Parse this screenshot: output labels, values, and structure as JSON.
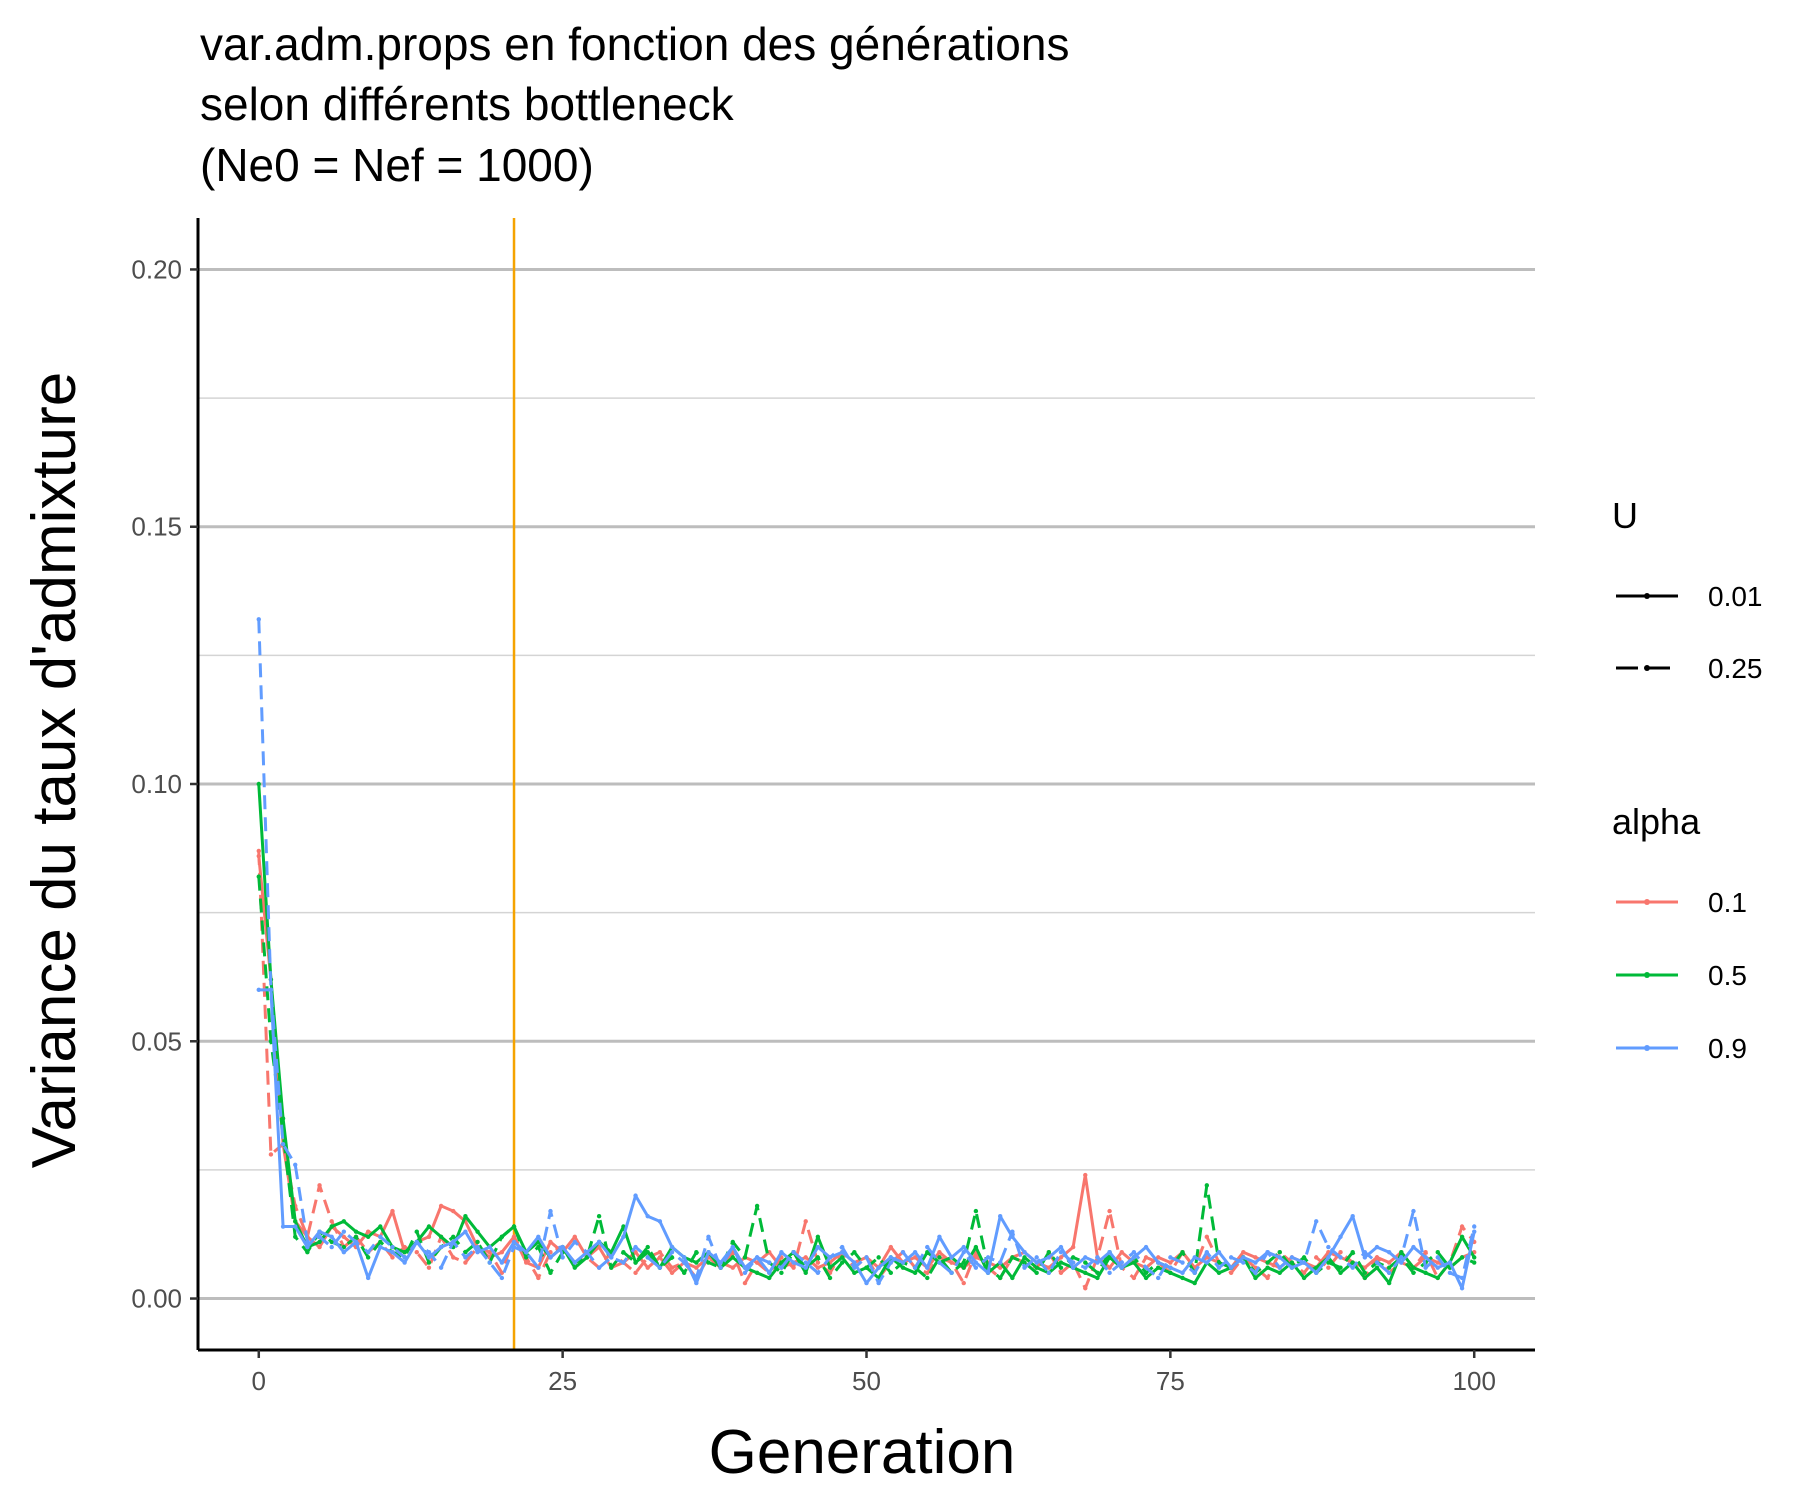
{
  "chart_data": {
    "type": "line",
    "title_lines": [
      "var.adm.props en fonction des générations",
      " selon différents bottleneck",
      " (Ne0 = Nef = 1000)"
    ],
    "xlabel": "Generation",
    "ylabel": "Variance du taux d'admixture",
    "xlim": [
      -5,
      105
    ],
    "ylim": [
      -0.01,
      0.21
    ],
    "x_ticks": [
      0,
      25,
      50,
      75,
      100
    ],
    "x_tick_labels": [
      "0",
      "25",
      "50",
      "75",
      "100"
    ],
    "y_ticks": [
      0,
      0.05,
      0.1,
      0.15,
      0.2
    ],
    "y_tick_labels": [
      "0.00",
      "0.05",
      "0.10",
      "0.15",
      "0.20"
    ],
    "y_minor_gridlines": [
      0.025,
      0.075,
      0.125,
      0.175
    ],
    "grid": "horizontal",
    "vline": {
      "x": 21,
      "color": "#f5a300"
    },
    "legend_position": "right",
    "legend": {
      "U": {
        "title": "U",
        "entries": [
          "0.01",
          "0.25"
        ]
      },
      "alpha": {
        "title": "alpha",
        "entries": [
          "0.1",
          "0.5",
          "0.9"
        ]
      }
    },
    "colors": {
      "0.1": "#f8766d",
      "0.5": "#00ba38",
      "0.9": "#619cff"
    },
    "linetypes": {
      "0.01": "solid",
      "0.25": "dashed"
    },
    "x_start": 0,
    "series": [
      {
        "alpha": "0.1",
        "U": "0.01",
        "values": [
          0.086,
          0.062,
          0.03,
          0.015,
          0.012,
          0.01,
          0.014,
          0.012,
          0.01,
          0.013,
          0.012,
          0.017,
          0.009,
          0.011,
          0.012,
          0.018,
          0.017,
          0.015,
          0.01,
          0.008,
          0.009,
          0.012,
          0.007,
          0.006,
          0.011,
          0.009,
          0.012,
          0.008,
          0.01,
          0.006,
          0.007,
          0.009,
          0.006,
          0.008,
          0.005,
          0.007,
          0.006,
          0.008,
          0.007,
          0.006,
          0.008,
          0.007,
          0.009,
          0.006,
          0.007,
          0.008,
          0.006,
          0.007,
          0.009,
          0.007,
          0.008,
          0.006,
          0.01,
          0.007,
          0.008,
          0.006,
          0.009,
          0.007,
          0.006,
          0.008,
          0.007,
          0.006,
          0.008,
          0.009,
          0.007,
          0.006,
          0.008,
          0.01,
          0.024,
          0.008,
          0.006,
          0.009,
          0.007,
          0.006,
          0.008,
          0.007,
          0.009,
          0.006,
          0.008,
          0.007,
          0.006,
          0.009,
          0.008,
          0.007,
          0.006,
          0.008,
          0.007,
          0.006,
          0.009,
          0.008,
          0.007,
          0.006,
          0.008,
          0.007,
          0.009,
          0.006,
          0.008,
          0.007,
          0.006,
          0.008,
          0.009
        ]
      },
      {
        "alpha": "0.1",
        "U": "0.25",
        "values": [
          0.087,
          0.028,
          0.03,
          0.018,
          0.012,
          0.022,
          0.015,
          0.01,
          0.012,
          0.009,
          0.011,
          0.008,
          0.01,
          0.009,
          0.006,
          0.012,
          0.008,
          0.007,
          0.01,
          0.009,
          0.005,
          0.012,
          0.008,
          0.004,
          0.009,
          0.01,
          0.007,
          0.008,
          0.006,
          0.009,
          0.007,
          0.005,
          0.008,
          0.009,
          0.006,
          0.007,
          0.004,
          0.008,
          0.006,
          0.009,
          0.003,
          0.007,
          0.005,
          0.008,
          0.006,
          0.015,
          0.007,
          0.005,
          0.009,
          0.006,
          0.008,
          0.004,
          0.007,
          0.009,
          0.006,
          0.005,
          0.008,
          0.007,
          0.003,
          0.009,
          0.006,
          0.004,
          0.008,
          0.007,
          0.006,
          0.009,
          0.005,
          0.007,
          0.002,
          0.008,
          0.017,
          0.006,
          0.004,
          0.008,
          0.007,
          0.005,
          0.009,
          0.006,
          0.012,
          0.007,
          0.005,
          0.008,
          0.006,
          0.004,
          0.009,
          0.007,
          0.005,
          0.008,
          0.006,
          0.009,
          0.007,
          0.004,
          0.008,
          0.005,
          0.007,
          0.006,
          0.009,
          0.004,
          0.007,
          0.014,
          0.011
        ]
      },
      {
        "alpha": "0.5",
        "U": "0.01",
        "values": [
          0.1,
          0.062,
          0.035,
          0.015,
          0.01,
          0.011,
          0.014,
          0.015,
          0.013,
          0.012,
          0.014,
          0.01,
          0.009,
          0.011,
          0.014,
          0.012,
          0.01,
          0.016,
          0.013,
          0.01,
          0.012,
          0.014,
          0.009,
          0.011,
          0.008,
          0.01,
          0.006,
          0.008,
          0.011,
          0.009,
          0.014,
          0.007,
          0.009,
          0.006,
          0.01,
          0.008,
          0.007,
          0.009,
          0.006,
          0.008,
          0.006,
          0.005,
          0.004,
          0.007,
          0.009,
          0.005,
          0.012,
          0.006,
          0.008,
          0.005,
          0.006,
          0.004,
          0.008,
          0.006,
          0.005,
          0.009,
          0.007,
          0.008,
          0.006,
          0.01,
          0.005,
          0.007,
          0.004,
          0.008,
          0.006,
          0.005,
          0.007,
          0.006,
          0.005,
          0.004,
          0.008,
          0.006,
          0.007,
          0.004,
          0.006,
          0.005,
          0.004,
          0.003,
          0.007,
          0.005,
          0.006,
          0.008,
          0.004,
          0.006,
          0.005,
          0.007,
          0.004,
          0.006,
          0.008,
          0.005,
          0.007,
          0.004,
          0.006,
          0.003,
          0.009,
          0.006,
          0.005,
          0.004,
          0.007,
          0.012,
          0.008
        ]
      },
      {
        "alpha": "0.5",
        "U": "0.25",
        "values": [
          0.082,
          0.05,
          0.032,
          0.012,
          0.009,
          0.013,
          0.011,
          0.01,
          0.012,
          0.008,
          0.011,
          0.009,
          0.008,
          0.013,
          0.007,
          0.01,
          0.012,
          0.009,
          0.011,
          0.007,
          0.012,
          0.014,
          0.008,
          0.01,
          0.005,
          0.009,
          0.007,
          0.008,
          0.016,
          0.006,
          0.009,
          0.007,
          0.01,
          0.006,
          0.008,
          0.005,
          0.009,
          0.007,
          0.006,
          0.011,
          0.008,
          0.018,
          0.007,
          0.005,
          0.009,
          0.006,
          0.008,
          0.004,
          0.007,
          0.009,
          0.006,
          0.008,
          0.005,
          0.007,
          0.006,
          0.004,
          0.008,
          0.005,
          0.007,
          0.017,
          0.006,
          0.004,
          0.008,
          0.007,
          0.005,
          0.009,
          0.006,
          0.008,
          0.007,
          0.005,
          0.009,
          0.006,
          0.008,
          0.005,
          0.007,
          0.006,
          0.009,
          0.005,
          0.022,
          0.007,
          0.006,
          0.008,
          0.005,
          0.007,
          0.009,
          0.006,
          0.008,
          0.005,
          0.007,
          0.006,
          0.009,
          0.005,
          0.007,
          0.006,
          0.008,
          0.005,
          0.007,
          0.009,
          0.006,
          0.008,
          0.007
        ]
      },
      {
        "alpha": "0.9",
        "U": "0.01",
        "values": [
          0.06,
          0.06,
          0.014,
          0.014,
          0.01,
          0.013,
          0.012,
          0.009,
          0.011,
          0.004,
          0.01,
          0.009,
          0.007,
          0.011,
          0.008,
          0.01,
          0.011,
          0.013,
          0.009,
          0.01,
          0.007,
          0.011,
          0.009,
          0.012,
          0.008,
          0.01,
          0.007,
          0.009,
          0.011,
          0.008,
          0.012,
          0.02,
          0.016,
          0.015,
          0.01,
          0.008,
          0.003,
          0.009,
          0.007,
          0.01,
          0.006,
          0.008,
          0.005,
          0.009,
          0.007,
          0.006,
          0.01,
          0.008,
          0.009,
          0.007,
          0.003,
          0.006,
          0.008,
          0.007,
          0.009,
          0.006,
          0.012,
          0.008,
          0.01,
          0.007,
          0.005,
          0.016,
          0.012,
          0.009,
          0.007,
          0.008,
          0.01,
          0.006,
          0.008,
          0.007,
          0.009,
          0.006,
          0.008,
          0.01,
          0.007,
          0.006,
          0.005,
          0.008,
          0.007,
          0.009,
          0.006,
          0.008,
          0.007,
          0.009,
          0.008,
          0.006,
          0.007,
          0.005,
          0.008,
          0.012,
          0.016,
          0.008,
          0.01,
          0.009,
          0.007,
          0.01,
          0.008,
          0.006,
          0.007,
          0.002,
          0.013
        ]
      },
      {
        "alpha": "0.9",
        "U": "0.25",
        "values": [
          0.132,
          0.06,
          0.03,
          0.026,
          0.011,
          0.012,
          0.01,
          0.013,
          0.011,
          0.009,
          0.012,
          0.01,
          0.008,
          0.011,
          0.009,
          0.006,
          0.011,
          0.008,
          0.01,
          0.007,
          0.004,
          0.01,
          0.009,
          0.006,
          0.017,
          0.008,
          0.011,
          0.009,
          0.006,
          0.008,
          0.007,
          0.01,
          0.008,
          0.006,
          0.009,
          0.007,
          0.004,
          0.012,
          0.006,
          0.01,
          0.005,
          0.008,
          0.007,
          0.006,
          0.009,
          0.007,
          0.005,
          0.008,
          0.01,
          0.006,
          0.008,
          0.003,
          0.007,
          0.009,
          0.006,
          0.01,
          0.007,
          0.005,
          0.009,
          0.006,
          0.008,
          0.007,
          0.013,
          0.006,
          0.008,
          0.005,
          0.009,
          0.007,
          0.006,
          0.008,
          0.005,
          0.007,
          0.009,
          0.006,
          0.004,
          0.008,
          0.007,
          0.005,
          0.009,
          0.006,
          0.008,
          0.007,
          0.005,
          0.009,
          0.006,
          0.008,
          0.007,
          0.015,
          0.01,
          0.008,
          0.006,
          0.009,
          0.007,
          0.005,
          0.008,
          0.017,
          0.006,
          0.008,
          0.005,
          0.004,
          0.014
        ]
      }
    ]
  }
}
